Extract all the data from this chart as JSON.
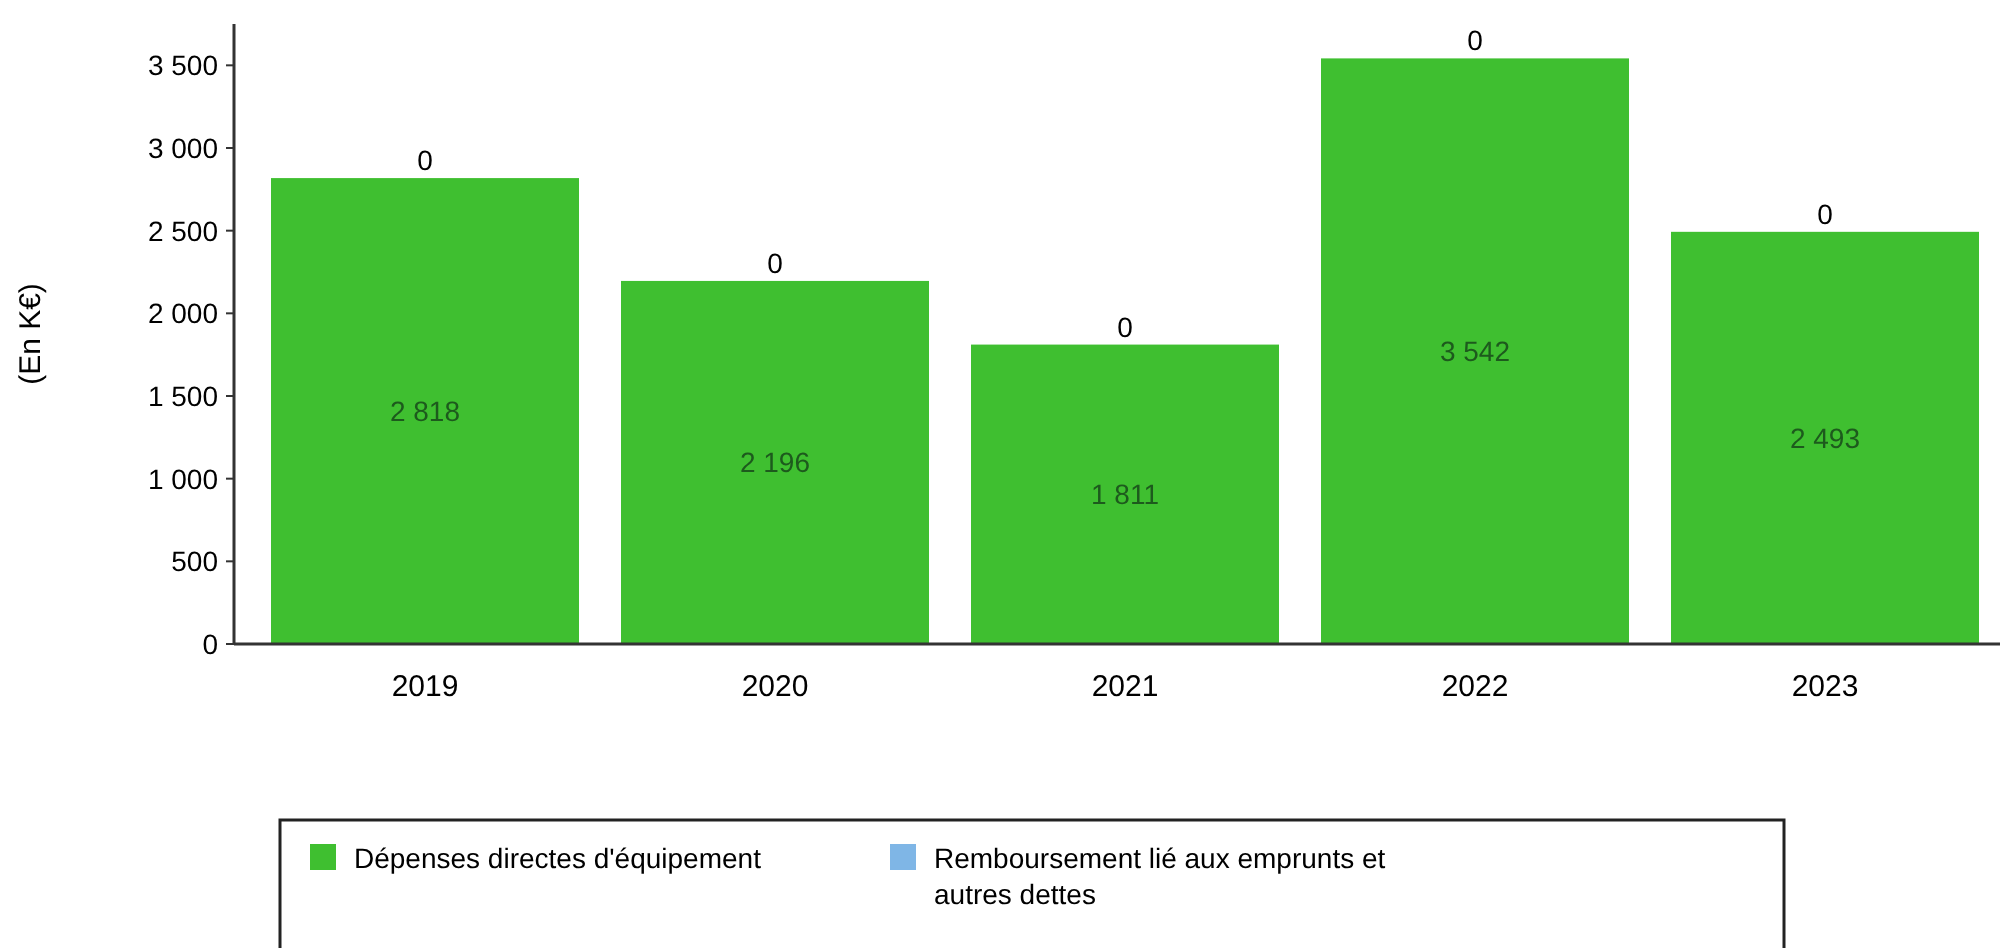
{
  "chart_data": {
    "type": "bar",
    "stacked": true,
    "ylabel": "(En K€)",
    "categories": [
      "2019",
      "2020",
      "2021",
      "2022",
      "2023"
    ],
    "series": [
      {
        "name": "Dépenses directes d'équipement",
        "color": "#3fbf30",
        "values": [
          2818,
          2196,
          1811,
          3542,
          2493
        ]
      },
      {
        "name": "Remboursement lié aux emprunts et autres dettes",
        "color": "#7fb6e6",
        "values": [
          0,
          0,
          0,
          0,
          0
        ]
      }
    ],
    "ylim": [
      0,
      3750
    ],
    "yticks": [
      {
        "value": 0,
        "label": "0"
      },
      {
        "value": 500,
        "label": "500"
      },
      {
        "value": 1000,
        "label": "1 000"
      },
      {
        "value": 1500,
        "label": "1 500"
      },
      {
        "value": 2000,
        "label": "2 000"
      },
      {
        "value": 2500,
        "label": "2 500"
      },
      {
        "value": 3000,
        "label": "3 000"
      },
      {
        "value": 3500,
        "label": "3 500"
      }
    ],
    "data_labels": true,
    "legend": "bottom"
  }
}
